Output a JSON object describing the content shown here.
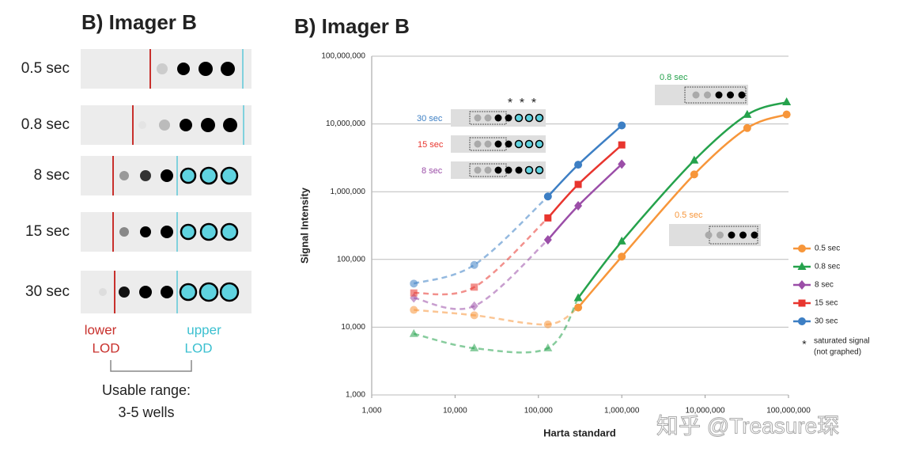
{
  "left_panel": {
    "title": "B) Imager B",
    "rows": [
      "0.5 sec",
      "0.8 sec",
      "8 sec",
      "15 sec",
      "30 sec"
    ],
    "lower_lod": [
      "lower",
      "LOD"
    ],
    "upper_lod": [
      "upper",
      "LOD"
    ],
    "usable_range": [
      "Usable range:",
      "3-5 wells"
    ]
  },
  "chart_data": {
    "type": "line",
    "title": "B) Imager B",
    "x_label": "Harta standard",
    "y_label": "Signal Intensity",
    "log_x": true,
    "log_y": true,
    "grid": "y",
    "xlim": [
      1000,
      100000000
    ],
    "xticks": [
      {
        "value": 1000,
        "label": "1,000"
      },
      {
        "value": 10000,
        "label": "10,000"
      },
      {
        "value": 100000,
        "label": "100,000"
      },
      {
        "value": 1000000,
        "label": "1,000,000"
      },
      {
        "value": 10000000,
        "label": "10,000,000"
      },
      {
        "value": 100000000,
        "label": "100,000,000"
      }
    ],
    "ylim": [
      1000,
      100000000
    ],
    "yticks": [
      {
        "value": 1000,
        "label": "1,000"
      },
      {
        "value": 10000,
        "label": "10,000"
      },
      {
        "value": 100000,
        "label": "100,000"
      },
      {
        "value": 1000000,
        "label": "1,000,000"
      },
      {
        "value": 10000000,
        "label": "10,000,000"
      },
      {
        "value": 100000000,
        "label": "100,000,000"
      }
    ],
    "series": [
      {
        "name": "0.5 sec",
        "color": "#f7963a",
        "marker": "circle",
        "dashed_until_index": 3,
        "x": [
          3200,
          17000,
          130000,
          300000,
          1000000,
          7400000,
          32000000,
          95000000
        ],
        "values": [
          18000,
          15000,
          11000,
          19500,
          110000,
          1800000,
          8700000,
          13800000
        ]
      },
      {
        "name": "0.8 sec",
        "color": "#25a24c",
        "marker": "triangle",
        "dashed_until_index": 3,
        "x": [
          3200,
          17000,
          130000,
          300000,
          1000000,
          7400000,
          32000000,
          95000000
        ],
        "values": [
          8000,
          4900,
          4900,
          27000,
          185000,
          2900000,
          13700000,
          21000000
        ]
      },
      {
        "name": "8 sec",
        "color": "#9b4ea8",
        "marker": "diamond",
        "dashed_until_index": 2,
        "x": [
          3200,
          17000,
          130000,
          300000,
          1000000
        ],
        "values": [
          27000,
          20500,
          195000,
          620000,
          2550000
        ]
      },
      {
        "name": "15 sec",
        "color": "#e8352e",
        "marker": "square",
        "dashed_until_index": 2,
        "x": [
          3200,
          17000,
          130000,
          300000,
          1000000
        ],
        "values": [
          32000,
          39000,
          410000,
          1280000,
          4900000
        ]
      },
      {
        "name": "30 sec",
        "color": "#3d7fc4",
        "marker": "circle",
        "dashed_until_index": 2,
        "x": [
          3200,
          17000,
          130000,
          300000,
          1000000
        ],
        "values": [
          44000,
          83000,
          850000,
          2500000,
          9500000
        ]
      }
    ],
    "legend_position": "right",
    "inset_labels": [
      "30 sec",
      "15 sec",
      "8 sec",
      "0.8 sec",
      "0.5 sec"
    ],
    "saturated_marks": [
      "*",
      "*",
      "*"
    ],
    "saturated_note": [
      "*",
      "saturated signal",
      "(not graphed)"
    ]
  },
  "watermark": "知乎 @Treasure琛"
}
